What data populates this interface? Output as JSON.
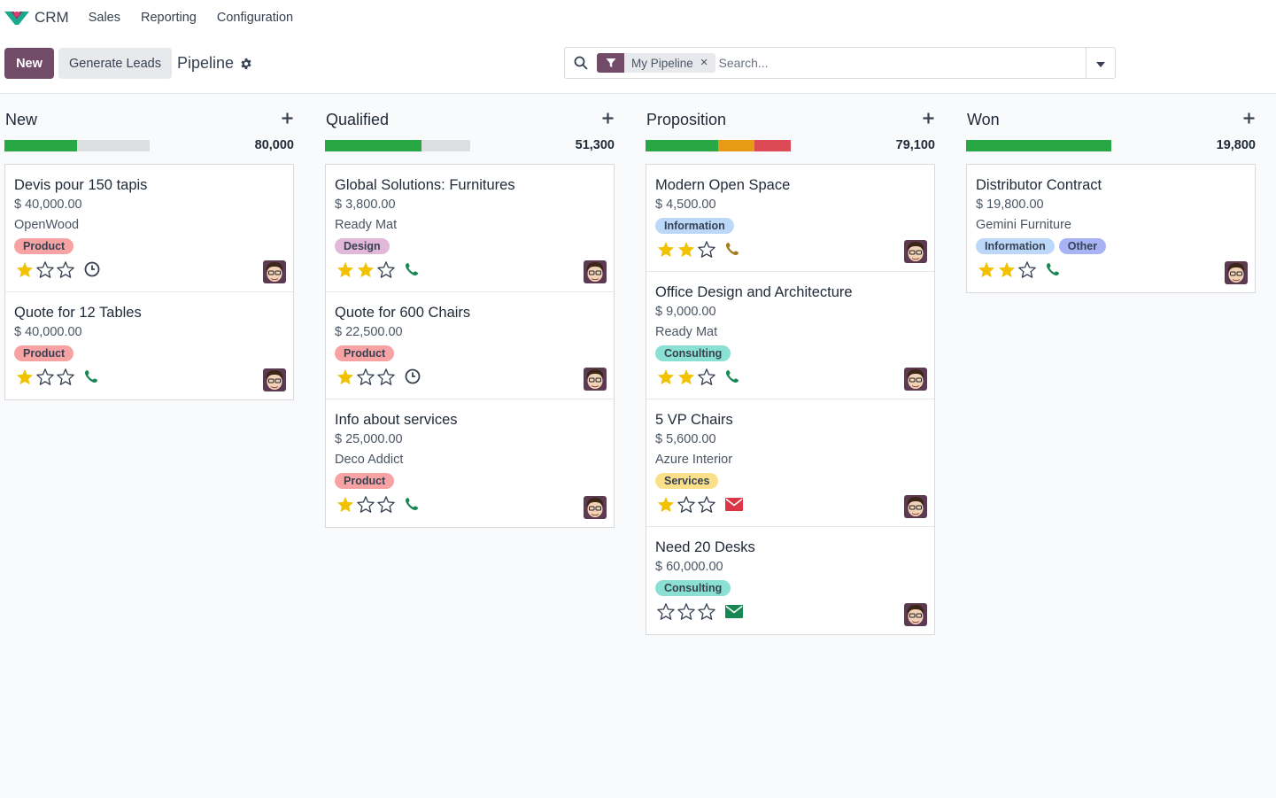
{
  "app": {
    "name": "CRM",
    "menu": [
      "Sales",
      "Reporting",
      "Configuration"
    ]
  },
  "control": {
    "new_label": "New",
    "generate_label": "Generate Leads",
    "breadcrumb": "Pipeline",
    "facet_label": "My Pipeline",
    "facet_remove": "×",
    "search_placeholder": "Search..."
  },
  "colors": {
    "brand": "#714b67",
    "green": "#28a745",
    "orange": "#e59b15",
    "red": "#dc4a55",
    "grey": "#dcdee1",
    "star": "#f2c200",
    "phone_green": "#198754",
    "phone_brown": "#a07a1b",
    "mail_red": "#dc3545",
    "mail_green": "#198754",
    "tag_product": "#f8a3a3",
    "tag_design": "#e2b8d8",
    "tag_information": "#bcd8f8",
    "tag_consulting": "#8be0d4",
    "tag_services": "#fbe08a",
    "tag_other": "#a8b3f5"
  },
  "columns": [
    {
      "title": "New",
      "total": "80,000",
      "progress": [
        {
          "color": "green",
          "fraction": 0.5
        }
      ],
      "cards": [
        {
          "title": "Devis pour 150 tapis",
          "amount": "$ 40,000.00",
          "customer": "OpenWood",
          "tags": [
            {
              "label": "Product",
              "color": "tag_product"
            }
          ],
          "stars": 1,
          "activity": "clock-icon"
        },
        {
          "title": "Quote for 12 Tables",
          "amount": "$ 40,000.00",
          "customer": "",
          "tags": [
            {
              "label": "Product",
              "color": "tag_product"
            }
          ],
          "stars": 1,
          "activity": "phone-icon"
        }
      ]
    },
    {
      "title": "Qualified",
      "total": "51,300",
      "progress": [
        {
          "color": "green",
          "fraction": 0.667
        }
      ],
      "cards": [
        {
          "title": "Global Solutions: Furnitures",
          "amount": "$ 3,800.00",
          "customer": "Ready Mat",
          "tags": [
            {
              "label": "Design",
              "color": "tag_design"
            }
          ],
          "stars": 2,
          "activity": "phone-icon"
        },
        {
          "title": "Quote for 600 Chairs",
          "amount": "$ 22,500.00",
          "customer": "",
          "tags": [
            {
              "label": "Product",
              "color": "tag_product"
            }
          ],
          "stars": 1,
          "activity": "clock-icon"
        },
        {
          "title": "Info about services",
          "amount": "$ 25,000.00",
          "customer": "Deco Addict",
          "tags": [
            {
              "label": "Product",
              "color": "tag_product"
            }
          ],
          "stars": 1,
          "activity": "phone-icon"
        }
      ]
    },
    {
      "title": "Proposition",
      "total": "79,100",
      "progress": [
        {
          "color": "green",
          "fraction": 0.5
        },
        {
          "color": "orange",
          "fraction": 0.25
        },
        {
          "color": "red",
          "fraction": 0.25
        }
      ],
      "cards": [
        {
          "title": "Modern Open Space",
          "amount": "$ 4,500.00",
          "customer": "",
          "tags": [
            {
              "label": "Information",
              "color": "tag_information"
            }
          ],
          "stars": 2,
          "activity": "phone-warning-icon"
        },
        {
          "title": "Office Design and Architecture",
          "amount": "$ 9,000.00",
          "customer": "Ready Mat",
          "tags": [
            {
              "label": "Consulting",
              "color": "tag_consulting"
            }
          ],
          "stars": 2,
          "activity": "phone-icon"
        },
        {
          "title": "5 VP Chairs",
          "amount": "$ 5,600.00",
          "customer": "Azure Interior",
          "tags": [
            {
              "label": "Services",
              "color": "tag_services"
            }
          ],
          "stars": 1,
          "activity": "mail-overdue-icon"
        },
        {
          "title": "Need 20 Desks",
          "amount": "$ 60,000.00",
          "customer": "",
          "tags": [
            {
              "label": "Consulting",
              "color": "tag_consulting"
            }
          ],
          "stars": 0,
          "activity": "mail-icon"
        }
      ]
    },
    {
      "title": "Won",
      "total": "19,800",
      "progress": [
        {
          "color": "green",
          "fraction": 1.0
        }
      ],
      "cards": [
        {
          "title": "Distributor Contract",
          "amount": "$ 19,800.00",
          "customer": "Gemini Furniture",
          "tags": [
            {
              "label": "Information",
              "color": "tag_information"
            },
            {
              "label": "Other",
              "color": "tag_other"
            }
          ],
          "stars": 2,
          "activity": "phone-icon"
        }
      ]
    }
  ]
}
